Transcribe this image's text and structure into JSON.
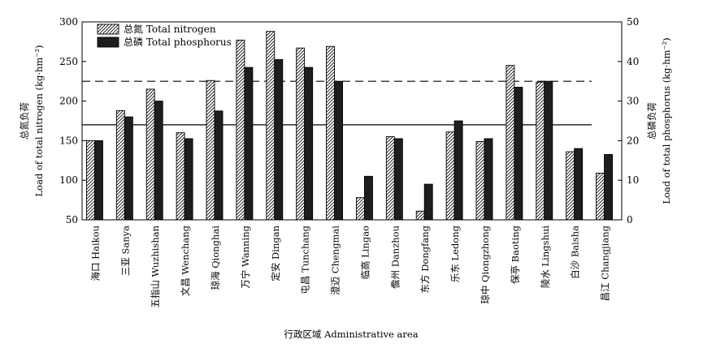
{
  "chart_data": {
    "type": "bar",
    "title": "",
    "categories": [
      "海口 Haikou",
      "三亚 Sanya",
      "五指山 Wuzhishan",
      "文昌 Wenchang",
      "琼海 Qionghai",
      "万宁 Wanning",
      "定安 Dingan",
      "屯昌 Tunchang",
      "澄迈 Chengmai",
      "临高 Lingao",
      "儋州 Danzhou",
      "东方 Dongfang",
      "乐东 Ledong",
      "琼中 Qiongzhong",
      "保亭 Baoting",
      "陵水 Lingshui",
      "白沙 Baisha",
      "昌江 Changjiang"
    ],
    "series": [
      {
        "name": "总氮 Total nitrogen",
        "axis": "left",
        "pattern": "hatched",
        "values": [
          150,
          188,
          215,
          160,
          226,
          277,
          288,
          267,
          269,
          78,
          155,
          61,
          161,
          149,
          245,
          224,
          136,
          109
        ]
      },
      {
        "name": "总磷 Total phosphorus",
        "axis": "right",
        "pattern": "solid",
        "color": "#1e1e1e",
        "values": [
          20,
          26,
          30,
          20.5,
          27.5,
          38.5,
          40.5,
          38.5,
          35,
          11,
          20.5,
          9,
          25,
          20.5,
          33.5,
          35,
          18,
          16.5
        ]
      }
    ],
    "xlabel": "行政区域 Administrative area",
    "ylabel_left": [
      "总氮负荷",
      "Load of total nitrogen (kg·hm⁻²)"
    ],
    "ylabel_right": [
      "总磷负荷",
      "Load of total phosphorus (kg·hm⁻²)"
    ],
    "ylim_left": [
      50,
      300
    ],
    "yticks_left": [
      50,
      100,
      150,
      200,
      250,
      300
    ],
    "ylim_right": [
      0,
      50
    ],
    "yticks_right": [
      0,
      10,
      20,
      30,
      40,
      50
    ],
    "reference_lines": [
      {
        "style": "dashed",
        "axis": "left",
        "value": 225
      },
      {
        "style": "solid",
        "axis": "left",
        "value": 170
      }
    ],
    "legend_position": "top-left",
    "grid": false
  }
}
